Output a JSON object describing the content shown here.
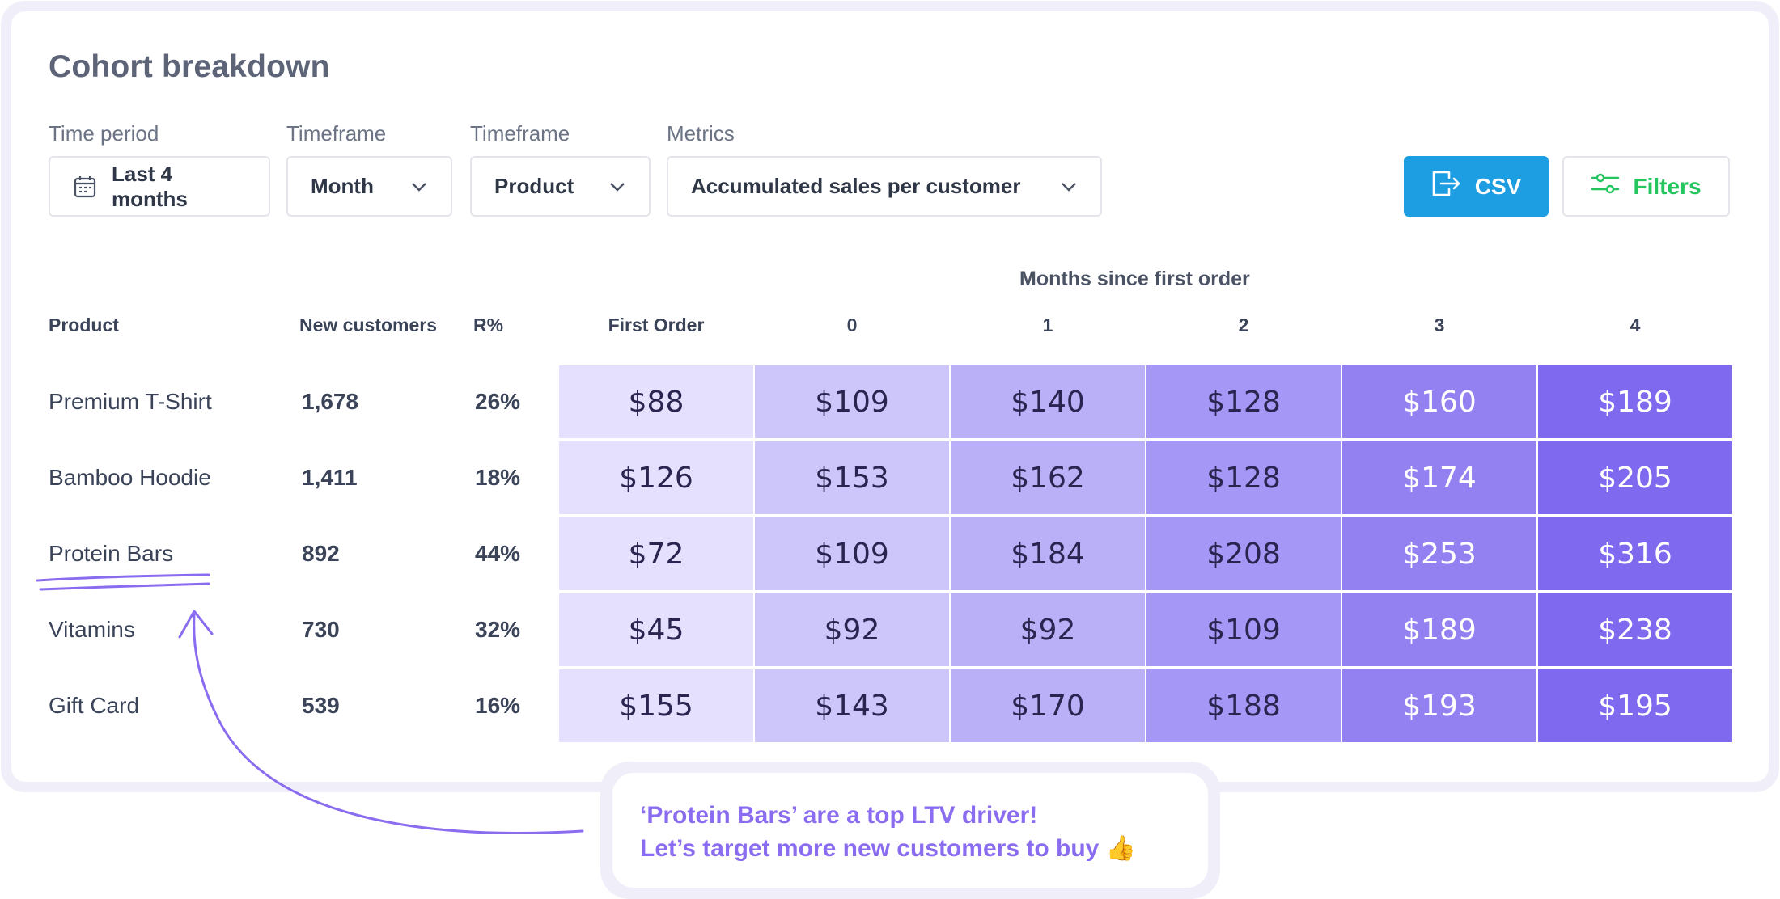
{
  "header": {
    "title": "Cohort breakdown"
  },
  "controls": {
    "time_period": {
      "label": "Time period",
      "value": "Last 4 months"
    },
    "timeframe": {
      "label": "Timeframe",
      "value": "Month"
    },
    "group_by": {
      "label": "Timeframe",
      "value": "Product"
    },
    "metrics": {
      "label": "Metrics",
      "value": "Accumulated sales per customer"
    },
    "csv_label": "CSV",
    "filters_label": "Filters"
  },
  "table": {
    "months_header": "Months since first order",
    "columns": [
      "Product",
      "New customers",
      "R%",
      "First Order",
      "0",
      "1",
      "2",
      "3",
      "4"
    ],
    "rows": [
      {
        "product": "Premium T-Shirt",
        "new_customers": "1,678",
        "r_pct": "26%",
        "values": [
          "$88",
          "$109",
          "$140",
          "$128",
          "$160",
          "$189"
        ]
      },
      {
        "product": "Bamboo Hoodie",
        "new_customers": "1,411",
        "r_pct": "18%",
        "values": [
          "$126",
          "$153",
          "$162",
          "$128",
          "$174",
          "$205"
        ]
      },
      {
        "product": "Protein Bars",
        "new_customers": "892",
        "r_pct": "44%",
        "values": [
          "$72",
          "$109",
          "$184",
          "$208",
          "$253",
          "$316"
        ]
      },
      {
        "product": "Vitamins",
        "new_customers": "730",
        "r_pct": "32%",
        "values": [
          "$45",
          "$92",
          "$92",
          "$109",
          "$189",
          "$238"
        ]
      },
      {
        "product": "Gift Card",
        "new_customers": "539",
        "r_pct": "16%",
        "values": [
          "$155",
          "$143",
          "$170",
          "$188",
          "$193",
          "$195"
        ]
      }
    ],
    "column_colors": [
      "#e4e0fd",
      "#cdc6fb",
      "#bab0f8",
      "#a597f5",
      "#9381f1",
      "#7f69ee"
    ]
  },
  "annotation": {
    "line1": "‘Protein Bars’ are a top LTV driver!",
    "line2": "Let’s target more new customers to buy 👍"
  },
  "colors": {
    "accent_blue": "#1d9de2",
    "filters_green": "#22c55e",
    "annotation_purple": "#8a6cf0"
  }
}
